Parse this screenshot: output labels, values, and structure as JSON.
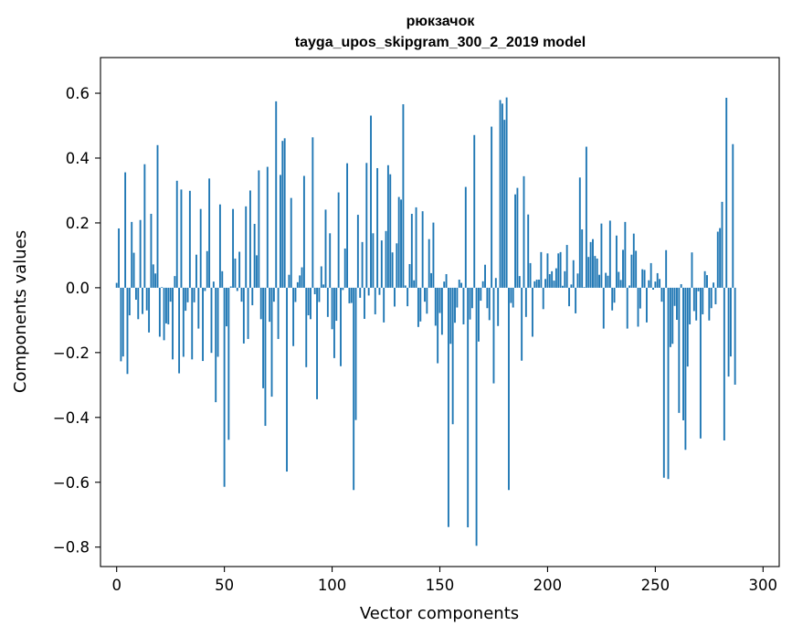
{
  "chart_data": {
    "type": "bar",
    "title": "рюкзачок",
    "subtitle": "tayga_upos_skipgram_300_2_2019 model",
    "xlabel": "Vector components",
    "ylabel": "Components values",
    "xlim": [
      -7.5,
      307.5
    ],
    "ylim": [
      -0.86,
      0.71
    ],
    "xticks": [
      0,
      50,
      100,
      150,
      200,
      250,
      300
    ],
    "xtick_labels": [
      "0",
      "50",
      "100",
      "150",
      "200",
      "250",
      "300"
    ],
    "yticks": [
      -0.8,
      -0.6,
      -0.4,
      -0.2,
      0.0,
      0.2,
      0.4,
      0.6
    ],
    "ytick_labels": [
      "−0.8",
      "−0.6",
      "−0.4",
      "−0.2",
      "0.0",
      "0.2",
      "0.4",
      "0.6"
    ],
    "bar_color": "#1f77b4",
    "grid": false,
    "series": [
      {
        "name": "components",
        "values": [
          0.015,
          0.183,
          -0.227,
          -0.212,
          0.356,
          -0.266,
          -0.085,
          0.203,
          0.108,
          -0.037,
          -0.097,
          0.209,
          -0.081,
          0.381,
          -0.07,
          -0.138,
          0.228,
          0.072,
          0.044,
          0.44,
          -0.151,
          0.002,
          -0.162,
          -0.11,
          -0.113,
          -0.043,
          -0.221,
          0.036,
          0.33,
          -0.264,
          0.303,
          -0.213,
          -0.071,
          -0.045,
          0.299,
          -0.221,
          -0.045,
          0.102,
          -0.126,
          0.243,
          -0.226,
          -0.01,
          0.113,
          0.337,
          -0.201,
          0.019,
          -0.353,
          -0.213,
          0.257,
          0.051,
          -0.614,
          -0.119,
          -0.469,
          0.004,
          0.243,
          0.09,
          -0.01,
          0.111,
          -0.043,
          -0.172,
          0.251,
          -0.158,
          0.3,
          -0.054,
          0.197,
          0.1,
          0.362,
          -0.097,
          -0.31,
          -0.426,
          0.373,
          -0.105,
          -0.336,
          -0.043,
          0.575,
          -0.158,
          0.348,
          0.453,
          0.461,
          -0.567,
          0.04,
          0.277,
          -0.18,
          -0.044,
          0.017,
          0.038,
          0.063,
          0.345,
          -0.245,
          -0.085,
          -0.097,
          0.464,
          -0.02,
          -0.344,
          -0.044,
          0.066,
          0.01,
          0.241,
          -0.09,
          0.168,
          -0.128,
          -0.217,
          -0.102,
          0.294,
          -0.242,
          -0.007,
          0.121,
          0.384,
          -0.048,
          -0.047,
          -0.624,
          -0.408,
          0.225,
          -0.031,
          0.141,
          -0.096,
          0.385,
          -0.024,
          0.531,
          0.168,
          -0.082,
          0.369,
          -0.022,
          0.146,
          -0.107,
          0.175,
          0.378,
          0.35,
          0.109,
          -0.058,
          0.137,
          0.28,
          0.272,
          0.566,
          0.007,
          -0.057,
          0.073,
          0.228,
          0.023,
          0.248,
          -0.121,
          -0.104,
          0.236,
          -0.043,
          -0.08,
          0.15,
          0.045,
          0.201,
          -0.117,
          -0.233,
          -0.078,
          -0.145,
          0.019,
          0.042,
          -0.738,
          -0.173,
          -0.421,
          -0.108,
          -0.061,
          0.025,
          0.015,
          -0.113,
          0.311,
          -0.739,
          -0.098,
          -0.063,
          0.471,
          -0.796,
          -0.166,
          -0.04,
          0.02,
          0.071,
          -0.063,
          -0.1,
          0.497,
          -0.295,
          0.03,
          -0.118,
          0.579,
          0.568,
          0.518,
          0.587,
          -0.624,
          -0.047,
          -0.061,
          0.288,
          0.308,
          0.036,
          -0.225,
          0.344,
          -0.09,
          0.226,
          0.076,
          -0.151,
          0.02,
          0.025,
          0.025,
          0.11,
          -0.066,
          0.027,
          0.106,
          0.042,
          0.051,
          0.022,
          0.06,
          0.106,
          0.11,
          0.006,
          0.051,
          0.132,
          -0.057,
          0.01,
          0.085,
          -0.079,
          0.044,
          0.34,
          0.18,
          0.002,
          0.435,
          0.095,
          0.141,
          0.15,
          0.098,
          0.09,
          0.04,
          0.198,
          -0.126,
          0.046,
          0.037,
          0.207,
          -0.07,
          -0.046,
          0.161,
          0.049,
          0.024,
          0.117,
          0.203,
          -0.126,
          0.007,
          0.102,
          0.167,
          0.114,
          -0.12,
          -0.064,
          0.057,
          0.055,
          -0.107,
          0.023,
          0.076,
          -0.006,
          0.019,
          0.045,
          0.027,
          -0.043,
          -0.586,
          0.116,
          -0.59,
          -0.183,
          -0.173,
          -0.056,
          -0.099,
          -0.386,
          0.011,
          -0.409,
          -0.5,
          -0.243,
          -0.113,
          0.109,
          -0.072,
          -0.101,
          -0.011,
          -0.465,
          -0.082,
          0.051,
          0.039,
          -0.101,
          -0.063,
          0.016,
          -0.051,
          0.173,
          0.184,
          0.265,
          -0.471,
          0.586,
          -0.274,
          -0.212,
          0.443,
          -0.299
        ]
      }
    ]
  }
}
